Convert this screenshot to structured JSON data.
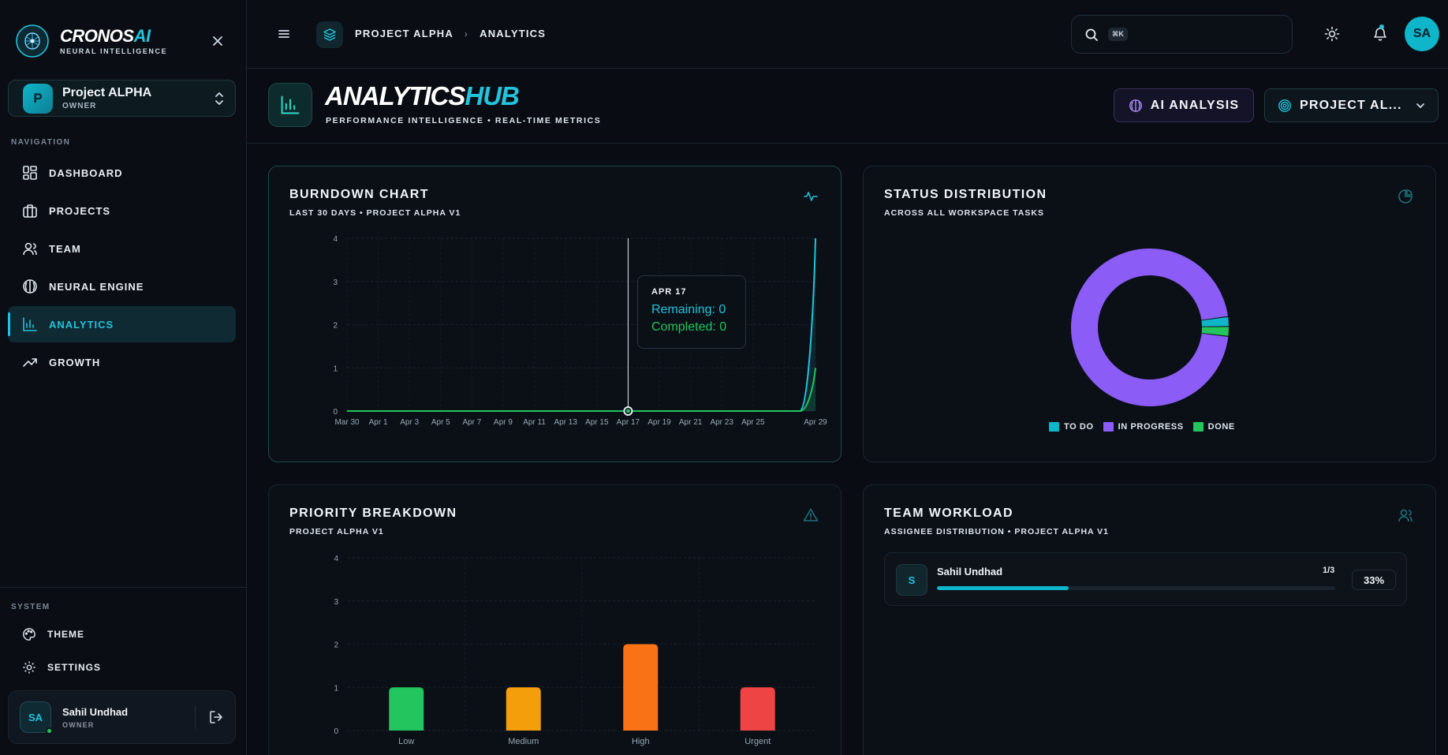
{
  "brand": {
    "name": "CRONOS",
    "name_accent": "AI",
    "tagline": "NEURAL INTELLIGENCE"
  },
  "project_switcher": {
    "initial": "P",
    "name": "Project ALPHA",
    "role": "OWNER"
  },
  "sidebar": {
    "nav_label": "NAVIGATION",
    "items": [
      {
        "label": "DASHBOARD",
        "icon": "dashboard-icon",
        "active": false
      },
      {
        "label": "PROJECTS",
        "icon": "briefcase-icon",
        "active": false
      },
      {
        "label": "TEAM",
        "icon": "users-icon",
        "active": false
      },
      {
        "label": "NEURAL ENGINE",
        "icon": "brain-icon",
        "active": false
      },
      {
        "label": "ANALYTICS",
        "icon": "bar-chart-icon",
        "active": true
      },
      {
        "label": "GROWTH",
        "icon": "trending-up-icon",
        "active": false
      }
    ],
    "system_label": "SYSTEM",
    "system_items": [
      {
        "label": "THEME",
        "icon": "palette-icon"
      },
      {
        "label": "SETTINGS",
        "icon": "gear-icon"
      }
    ]
  },
  "user": {
    "initials": "SA",
    "name": "Sahil Undhad",
    "role": "OWNER",
    "online": true
  },
  "topbar": {
    "breadcrumb": [
      "PROJECT ALPHA",
      "ANALYTICS"
    ],
    "search": {
      "shortcut": "⌘K",
      "placeholder": ""
    },
    "avatar_initials": "SA"
  },
  "header": {
    "title": "ANALYTICS",
    "title_accent": "HUB",
    "subtitle": "PERFORMANCE INTELLIGENCE • REAL-TIME METRICS",
    "ai_button": "AI ANALYSIS",
    "project_button": "PROJECT AL..."
  },
  "colors": {
    "accent": "#22c3dd",
    "remaining": "#22c3dd",
    "completed": "#22c55e",
    "todo": "#0fb6c9",
    "in_progress": "#8b5cf6",
    "done": "#22c55e",
    "low": "#22c55e",
    "medium": "#f59e0b",
    "high": "#f97316",
    "urgent": "#ef4444"
  },
  "cards": {
    "burndown": {
      "title": "BURNDOWN CHART",
      "subtitle": "LAST 30 DAYS • PROJECT ALPHA V1"
    },
    "status": {
      "title": "STATUS DISTRIBUTION",
      "subtitle": "ACROSS ALL WORKSPACE TASKS"
    },
    "priority": {
      "title": "PRIORITY BREAKDOWN",
      "subtitle": "PROJECT ALPHA V1"
    },
    "workload": {
      "title": "TEAM WORKLOAD",
      "subtitle": "ASSIGNEE DISTRIBUTION • PROJECT ALPHA V1"
    }
  },
  "tooltip": {
    "date": "APR 17",
    "remaining": "Remaining: 0",
    "completed": "Completed: 0"
  },
  "workload": [
    {
      "initial": "S",
      "name": "Sahil Undhad",
      "count": "1/3",
      "percent": "33%",
      "fraction": 0.33
    }
  ],
  "chart_data": [
    {
      "type": "line",
      "title": "BURNDOWN CHART",
      "x": [
        "Mar 30",
        "Mar 31",
        "Apr 1",
        "Apr 2",
        "Apr 3",
        "Apr 4",
        "Apr 5",
        "Apr 6",
        "Apr 7",
        "Apr 8",
        "Apr 9",
        "Apr 10",
        "Apr 11",
        "Apr 12",
        "Apr 13",
        "Apr 14",
        "Apr 15",
        "Apr 16",
        "Apr 17",
        "Apr 18",
        "Apr 19",
        "Apr 20",
        "Apr 21",
        "Apr 22",
        "Apr 23",
        "Apr 24",
        "Apr 25",
        "Apr 26",
        "Apr 27",
        "Apr 28",
        "Apr 29"
      ],
      "xtick_labels": [
        "Mar 30",
        "Apr 1",
        "Apr 3",
        "Apr 5",
        "Apr 7",
        "Apr 9",
        "Apr 11",
        "Apr 13",
        "Apr 15",
        "Apr 17",
        "Apr 19",
        "Apr 21",
        "Apr 23",
        "Apr 25",
        "Apr 29"
      ],
      "series": [
        {
          "name": "Remaining",
          "values": [
            0,
            0,
            0,
            0,
            0,
            0,
            0,
            0,
            0,
            0,
            0,
            0,
            0,
            0,
            0,
            0,
            0,
            0,
            0,
            0,
            0,
            0,
            0,
            0,
            0,
            0,
            0,
            0,
            0,
            0,
            4
          ]
        },
        {
          "name": "Completed",
          "values": [
            0,
            0,
            0,
            0,
            0,
            0,
            0,
            0,
            0,
            0,
            0,
            0,
            0,
            0,
            0,
            0,
            0,
            0,
            0,
            0,
            0,
            0,
            0,
            0,
            0,
            0,
            0,
            0,
            0,
            0,
            1
          ]
        }
      ],
      "ylim": [
        0,
        4
      ],
      "yticks": [
        0,
        1,
        2,
        3,
        4
      ],
      "grid": true,
      "highlight": "Apr 17"
    },
    {
      "type": "pie",
      "title": "STATUS DISTRIBUTION",
      "categories": [
        "TO DO",
        "IN PROGRESS",
        "DONE"
      ],
      "values": [
        0.02,
        0.96,
        0.02
      ],
      "donut": true,
      "legend": "bottom"
    },
    {
      "type": "bar",
      "title": "PRIORITY BREAKDOWN",
      "categories": [
        "Low",
        "Medium",
        "High",
        "Urgent"
      ],
      "values": [
        1,
        1,
        2,
        1
      ],
      "ylim": [
        0,
        4
      ],
      "yticks": [
        0,
        1,
        2,
        3,
        4
      ],
      "grid": true
    }
  ]
}
